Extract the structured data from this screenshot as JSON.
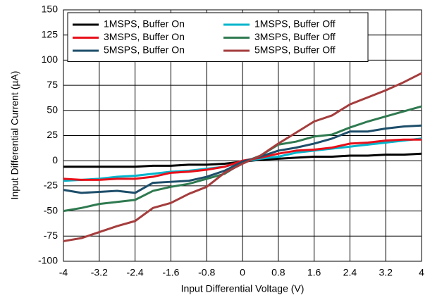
{
  "chart_data": {
    "type": "line",
    "xlabel": "Input Differential Voltage (V)",
    "ylabel": "Input Differential Current (µA)",
    "x": [
      -4,
      -3.6,
      -3.2,
      -2.8,
      -2.4,
      -2,
      -1.6,
      -1.2,
      -0.8,
      -0.4,
      0,
      0.4,
      0.8,
      1.2,
      1.6,
      2,
      2.4,
      2.8,
      3.2,
      3.6,
      4
    ],
    "series": [
      {
        "name": "1MSPS, Buffer On",
        "color": "#000000",
        "values": [
          -6,
          -6,
          -6,
          -6,
          -6,
          -5,
          -5,
          -4,
          -4,
          -3,
          -1,
          1,
          2,
          3,
          4,
          4,
          5,
          5,
          6,
          6,
          7
        ]
      },
      {
        "name": "1MSPS, Buffer Off",
        "color": "#00b5cc",
        "values": [
          -20,
          -19,
          -18,
          -16,
          -15,
          -13,
          -11,
          -10,
          -8,
          -6,
          -1,
          2,
          4,
          8,
          10,
          12,
          14,
          16,
          18,
          20,
          22
        ]
      },
      {
        "name": "3MSPS, Buffer On",
        "color": "#e8101a",
        "values": [
          -18,
          -19,
          -19,
          -18,
          -18,
          -16,
          -12,
          -11,
          -9,
          -6,
          0,
          3,
          7,
          10,
          11,
          13,
          17,
          18,
          20,
          21,
          21
        ]
      },
      {
        "name": "3MSPS, Buffer Off",
        "color": "#2f7a50",
        "values": [
          -50,
          -47,
          -43,
          -41,
          -39,
          -30,
          -26,
          -23,
          -18,
          -13,
          -2,
          5,
          16,
          19,
          24,
          26,
          33,
          39,
          44,
          49,
          54
        ]
      },
      {
        "name": "5MSPS, Buffer On",
        "color": "#1d4e6a",
        "values": [
          -29,
          -32,
          -31,
          -30,
          -32,
          -22,
          -21,
          -20,
          -16,
          -10,
          -1,
          4,
          10,
          13,
          17,
          22,
          29,
          29,
          32,
          34,
          35
        ]
      },
      {
        "name": "5MSPS, Buffer Off",
        "color": "#a53d3d",
        "values": [
          -80,
          -77,
          -71,
          -65,
          -60,
          -47,
          -42,
          -33,
          -26,
          -12,
          -3,
          5,
          17,
          28,
          39,
          45,
          56,
          63,
          70,
          78,
          87
        ]
      }
    ],
    "xlim": [
      -4,
      4
    ],
    "xticks": [
      -4,
      -3.2,
      -2.4,
      -1.6,
      -0.8,
      0,
      0.8,
      1.6,
      2.4,
      3.2,
      4
    ],
    "ylim": [
      -100,
      150
    ],
    "yticks": [
      -100,
      -75,
      -50,
      -25,
      0,
      25,
      50,
      75,
      100,
      125,
      150
    ],
    "grid": true,
    "legend": "upper left"
  }
}
